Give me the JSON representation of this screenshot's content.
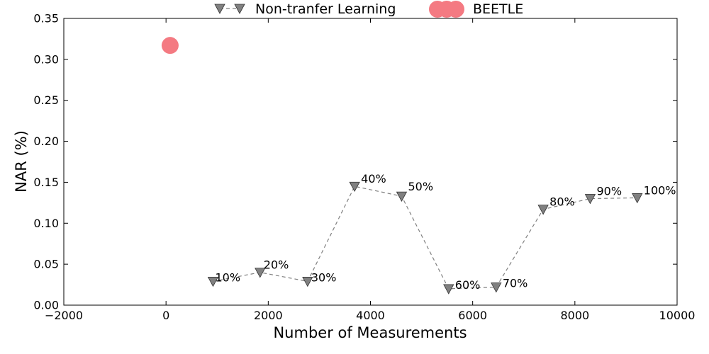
{
  "chart_data": {
    "type": "scatter",
    "title": "",
    "xlabel": "Number of Measurements",
    "ylabel": "NAR (%)",
    "xlim": [
      -2000,
      10000
    ],
    "ylim": [
      0,
      0.35
    ],
    "xticks": [
      -2000,
      0,
      2000,
      4000,
      6000,
      8000,
      10000
    ],
    "xtick_labels": [
      "−2000",
      "0",
      "2000",
      "4000",
      "6000",
      "8000",
      "10000"
    ],
    "yticks": [
      0.0,
      0.05,
      0.1,
      0.15,
      0.2,
      0.25,
      0.3,
      0.35
    ],
    "ytick_labels": [
      "0.00",
      "0.05",
      "0.10",
      "0.15",
      "0.20",
      "0.25",
      "0.30",
      "0.35"
    ],
    "grid": false,
    "legend_position": "top-center",
    "series": [
      {
        "name": "Non-tranfer Learning",
        "style": "dashed-line-triangle-down",
        "color": "#808080",
        "x": [
          920,
          1840,
          2770,
          3690,
          4610,
          5530,
          6460,
          7380,
          8300,
          9220
        ],
        "y": [
          0.029,
          0.04,
          0.029,
          0.145,
          0.133,
          0.02,
          0.022,
          0.117,
          0.13,
          0.131
        ],
        "labels": [
          "10%",
          "20%",
          "30%",
          "40%",
          "50%",
          "60%",
          "70%",
          "80%",
          "90%",
          "100%"
        ]
      },
      {
        "name": "BEETLE",
        "style": "circle",
        "color": "#f47a82",
        "x": [
          80
        ],
        "y": [
          0.317
        ]
      }
    ]
  }
}
